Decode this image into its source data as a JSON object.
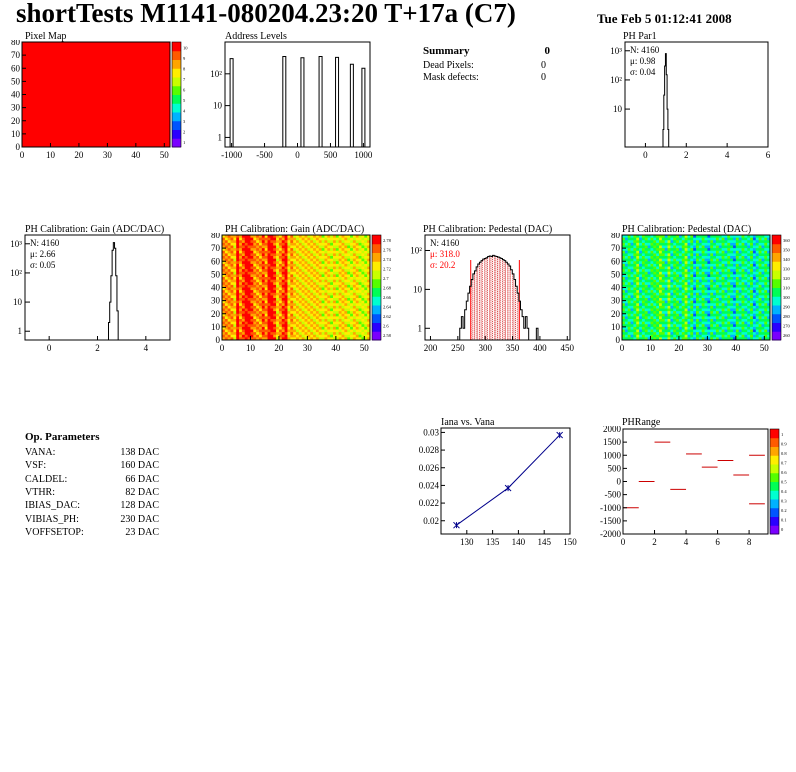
{
  "header": {
    "title": "shortTests M1141-080204.23:20 T+17a (C7)",
    "timestamp": "Tue Feb  5 01:12:41 2008"
  },
  "summary": {
    "heading": "Summary",
    "heading_value": "0",
    "rows": [
      {
        "label": "Dead Pixels:",
        "value": "0"
      },
      {
        "label": "Mask defects:",
        "value": "0"
      }
    ]
  },
  "op_params": {
    "heading": "Op. Parameters",
    "rows": [
      {
        "name": "VANA:",
        "value": "138 DAC"
      },
      {
        "name": "VSF:",
        "value": "160 DAC"
      },
      {
        "name": "CALDEL:",
        "value": "66 DAC"
      },
      {
        "name": "VTHR:",
        "value": "82 DAC"
      },
      {
        "name": "IBIAS_DAC:",
        "value": "128 DAC"
      },
      {
        "name": "VIBIAS_PH:",
        "value": "230 DAC"
      },
      {
        "name": "VOFFSETOP:",
        "value": "23 DAC"
      }
    ]
  },
  "palette": [
    "#7a00ff",
    "#2a00ff",
    "#0055ff",
    "#00b2ff",
    "#00ffd0",
    "#00ff55",
    "#55ff00",
    "#c8ff00",
    "#ffee00",
    "#ffa500",
    "#ff5a00",
    "#ff0000"
  ],
  "chart_data": [
    {
      "id": "pixel-map",
      "type": "heatmap",
      "title": "Pixel Map",
      "xlim": [
        0,
        52
      ],
      "ylim": [
        0,
        80
      ],
      "xticks": [
        "0",
        "10",
        "20",
        "30",
        "40",
        "50"
      ],
      "yticks": [
        "0",
        "10",
        "20",
        "30",
        "40",
        "50",
        "60",
        "70",
        "80"
      ],
      "fill": "uniform maximum",
      "colorbar_ticks": [
        "10",
        "9",
        "8",
        "7",
        "6",
        "5",
        "4",
        "3",
        "2",
        "1"
      ]
    },
    {
      "id": "address-levels",
      "type": "bar",
      "title": "Address Levels",
      "xlim": [
        -1100,
        1100
      ],
      "log_y": true,
      "ylim": [
        0.5,
        1000
      ],
      "xticks": [
        "-1000",
        "-500",
        "0",
        "500",
        "1000"
      ],
      "yticks": [
        "1",
        "10",
        "10²"
      ],
      "peaks": [
        {
          "x": -1000,
          "y": 300
        },
        {
          "x": -200,
          "y": 350
        },
        {
          "x": 75,
          "y": 320
        },
        {
          "x": 350,
          "y": 350
        },
        {
          "x": 600,
          "y": 330
        },
        {
          "x": 825,
          "y": 200
        },
        {
          "x": 1000,
          "y": 150
        }
      ]
    },
    {
      "id": "ph-par1",
      "type": "bar",
      "title": "PH Par1",
      "xlim": [
        -1,
        6
      ],
      "log_y": true,
      "ylim": [
        0.5,
        2000
      ],
      "xticks": [
        "0",
        "2",
        "4",
        "6"
      ],
      "yticks": [
        "10",
        "10²",
        "10³"
      ],
      "stats": {
        "n": "N: 4160",
        "mean": "μ: 0.98",
        "sigma": "σ: 0.04"
      },
      "hist": [
        [
          0.88,
          2
        ],
        [
          0.92,
          30
        ],
        [
          0.96,
          300
        ],
        [
          1.0,
          800
        ],
        [
          1.04,
          150
        ],
        [
          1.08,
          10
        ],
        [
          1.12,
          2
        ]
      ]
    },
    {
      "id": "gain-hist",
      "type": "bar",
      "title": "PH Calibration: Gain (ADC/DAC)",
      "xlim": [
        -1,
        5
      ],
      "log_y": true,
      "ylim": [
        0.5,
        2000
      ],
      "xticks": [
        "0",
        "2",
        "4"
      ],
      "yticks": [
        "1",
        "10",
        "10²",
        "10³"
      ],
      "stats": {
        "n": "N: 4160",
        "mean": "μ: 2.66",
        "sigma": "σ: 0.05"
      },
      "hist": [
        [
          2.48,
          2
        ],
        [
          2.53,
          10
        ],
        [
          2.58,
          80
        ],
        [
          2.63,
          600
        ],
        [
          2.68,
          1100
        ],
        [
          2.73,
          700
        ],
        [
          2.78,
          80
        ],
        [
          2.83,
          5
        ]
      ]
    },
    {
      "id": "gain-map",
      "type": "heatmap",
      "title": "PH Calibration: Gain (ADC/DAC)",
      "xlim": [
        0,
        52
      ],
      "ylim": [
        0,
        80
      ],
      "xticks": [
        "0",
        "10",
        "20",
        "30",
        "40",
        "50"
      ],
      "yticks": [
        "0",
        "10",
        "20",
        "30",
        "40",
        "50",
        "60",
        "70",
        "80"
      ],
      "colorbar_ticks": [
        "2.78",
        "2.76",
        "2.74",
        "2.72",
        "2.7",
        "2.68",
        "2.66",
        "2.64",
        "2.62",
        "2.6",
        "2.58"
      ],
      "column_levels": [
        9,
        9,
        9,
        9,
        8,
        11,
        9,
        10,
        11,
        11,
        10,
        9,
        9,
        9,
        10,
        9,
        11,
        11,
        10,
        8,
        9,
        10,
        11,
        8,
        9,
        8,
        8,
        8,
        8,
        8,
        8,
        8,
        8,
        8,
        8,
        7,
        8,
        8,
        7,
        8,
        7,
        8,
        8,
        8,
        7,
        7,
        8,
        8,
        7,
        7,
        7,
        8
      ]
    },
    {
      "id": "pedestal-hist",
      "type": "bar",
      "title": "PH Calibration: Pedestal (DAC)",
      "xlim": [
        190,
        455
      ],
      "log_y": true,
      "ylim": [
        0.5,
        250
      ],
      "xticks": [
        "200",
        "250",
        "300",
        "350",
        "400",
        "450"
      ],
      "yticks": [
        "1",
        "10",
        "10²"
      ],
      "stats": {
        "n": "N: 4160",
        "mean": "μ: 318.0",
        "sigma": "σ: 20.2"
      },
      "stat_color": "#ff0000",
      "mean": 318.0,
      "sigma": 20.2,
      "hist": [
        [
          255,
          1
        ],
        [
          258,
          2
        ],
        [
          261,
          1
        ],
        [
          264,
          3
        ],
        [
          267,
          5
        ],
        [
          270,
          8
        ],
        [
          273,
          12
        ],
        [
          276,
          18
        ],
        [
          279,
          25
        ],
        [
          282,
          30
        ],
        [
          285,
          38
        ],
        [
          288,
          45
        ],
        [
          291,
          50
        ],
        [
          294,
          55
        ],
        [
          297,
          60
        ],
        [
          300,
          62
        ],
        [
          303,
          65
        ],
        [
          306,
          70
        ],
        [
          309,
          72
        ],
        [
          312,
          70
        ],
        [
          315,
          75
        ],
        [
          318,
          72
        ],
        [
          321,
          70
        ],
        [
          324,
          68
        ],
        [
          327,
          65
        ],
        [
          330,
          62
        ],
        [
          333,
          58
        ],
        [
          336,
          55
        ],
        [
          339,
          50
        ],
        [
          342,
          45
        ],
        [
          345,
          40
        ],
        [
          348,
          32
        ],
        [
          351,
          25
        ],
        [
          354,
          18
        ],
        [
          357,
          12
        ],
        [
          360,
          8
        ],
        [
          363,
          5
        ],
        [
          366,
          3
        ],
        [
          369,
          2
        ],
        [
          372,
          1
        ],
        [
          375,
          2
        ],
        [
          378,
          1
        ],
        [
          395,
          1
        ]
      ]
    },
    {
      "id": "pedestal-map",
      "type": "heatmap",
      "title": "PH Calibration: Pedestal (DAC)",
      "xlim": [
        0,
        52
      ],
      "ylim": [
        0,
        80
      ],
      "xticks": [
        "0",
        "10",
        "20",
        "30",
        "40",
        "50"
      ],
      "yticks": [
        "0",
        "10",
        "20",
        "30",
        "40",
        "50",
        "60",
        "70",
        "80"
      ],
      "colorbar_ticks": [
        "360",
        "350",
        "340",
        "330",
        "320",
        "310",
        "300",
        "290",
        "280",
        "270",
        "260"
      ],
      "column_levels": [
        5,
        4,
        5,
        4,
        5,
        6,
        4,
        5,
        5,
        4,
        5,
        5,
        5,
        6,
        5,
        4,
        6,
        4,
        5,
        5,
        4,
        5,
        6,
        4,
        5,
        3,
        5,
        4,
        5,
        4,
        3,
        5,
        4,
        5,
        4,
        5,
        4,
        5,
        4,
        3,
        5,
        4,
        5,
        4,
        4,
        5,
        3,
        4,
        5,
        4,
        5,
        4
      ]
    },
    {
      "id": "iana-vs-vana",
      "type": "line",
      "title": "Iana vs. Vana",
      "xlim": [
        125,
        150
      ],
      "ylim": [
        0.0185,
        0.0305
      ],
      "xticks": [
        "130",
        "135",
        "140",
        "145",
        "150"
      ],
      "yticks": [
        "0.02",
        "0.022",
        "0.024",
        "0.026",
        "0.028",
        "0.03"
      ],
      "x": [
        128,
        138,
        148
      ],
      "y": [
        0.0195,
        0.0237,
        0.0297
      ]
    },
    {
      "id": "ph-range",
      "type": "scatter",
      "title": "PHRange",
      "xlim": [
        0,
        9.2
      ],
      "ylim": [
        -2000,
        2000
      ],
      "xticks": [
        "0",
        "2",
        "4",
        "6",
        "8"
      ],
      "yticks": [
        "-2000",
        "-1500",
        "-1000",
        "-500",
        "0",
        "500",
        "1000",
        "1500",
        "2000"
      ],
      "colorbar_ticks": [
        "1",
        "0.9",
        "0.8",
        "0.7",
        "0.6",
        "0.5",
        "0.4",
        "0.3",
        "0.2",
        "0.1",
        "0"
      ],
      "segments": [
        {
          "x": 0.5,
          "y": -1000
        },
        {
          "x": 1.5,
          "y": 0
        },
        {
          "x": 2.5,
          "y": 1500
        },
        {
          "x": 3.5,
          "y": -300
        },
        {
          "x": 4.5,
          "y": 1050
        },
        {
          "x": 5.5,
          "y": 550
        },
        {
          "x": 6.5,
          "y": 800
        },
        {
          "x": 7.5,
          "y": 250
        },
        {
          "x": 8.5,
          "y": 1000
        },
        {
          "x": 8.5,
          "y": -850
        }
      ]
    }
  ]
}
